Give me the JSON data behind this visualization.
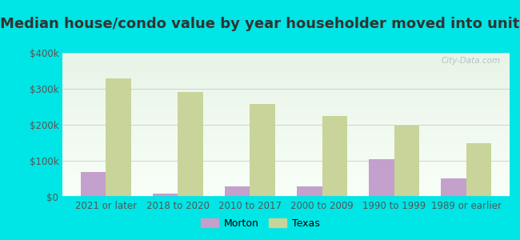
{
  "title": "Median house/condo value by year householder moved into unit",
  "categories": [
    "2021 or later",
    "2018 to 2020",
    "2010 to 2017",
    "2000 to 2009",
    "1990 to 1999",
    "1989 or earlier"
  ],
  "morton_values": [
    68000,
    10000,
    28000,
    28000,
    105000,
    52000
  ],
  "texas_values": [
    330000,
    292000,
    258000,
    225000,
    197000,
    150000
  ],
  "morton_color": "#c4a0cc",
  "texas_color": "#c8d49a",
  "background_color": "#00e5e5",
  "plot_bg_top": "#e8f4e8",
  "plot_bg_bottom": "#f8fff8",
  "ylim": [
    0,
    400000
  ],
  "yticks": [
    0,
    100000,
    200000,
    300000,
    400000
  ],
  "ytick_labels": [
    "$0",
    "$100k",
    "$200k",
    "$300k",
    "$400k"
  ],
  "bar_width": 0.35,
  "legend_labels": [
    "Morton",
    "Texas"
  ],
  "watermark": "City-Data.com",
  "title_fontsize": 13,
  "tick_fontsize": 8.5
}
